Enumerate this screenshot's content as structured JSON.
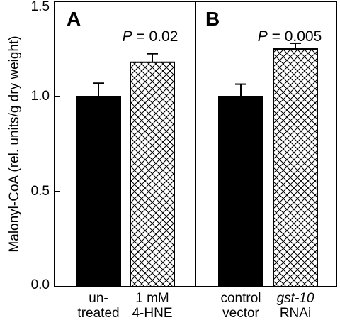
{
  "chart_data": [
    {
      "type": "bar",
      "panel": "A",
      "categories": [
        [
          "un-",
          "treated"
        ],
        [
          "1 mM",
          "4-HNE"
        ]
      ],
      "values": [
        1.0,
        1.18
      ],
      "errors": [
        0.07,
        0.045
      ],
      "fills": [
        "solid",
        "crosshatch"
      ],
      "annotation": {
        "prefix": "P",
        "text": " = 0.02"
      },
      "ylim": [
        0,
        1.5
      ]
    },
    {
      "type": "bar",
      "panel": "B",
      "categories": [
        [
          "control",
          "vector"
        ],
        [
          "gst-10",
          "RNAi"
        ]
      ],
      "values": [
        1.0,
        1.25
      ],
      "errors": [
        0.065,
        0.03
      ],
      "fills": [
        "solid",
        "crosshatch"
      ],
      "annotation": {
        "prefix": "P",
        "text": " = 0.005"
      },
      "ylim": [
        0,
        1.5
      ]
    }
  ],
  "ylabel": "Malonyl-CoA (rel. units/g dry weight)",
  "yticks": [
    "0.0",
    "0.5",
    "1.0",
    "1.5"
  ],
  "ytick_values": [
    0,
    0.5,
    1.0,
    1.5
  ],
  "colors": {
    "bar_fill": "#000000",
    "axis": "#000000"
  }
}
